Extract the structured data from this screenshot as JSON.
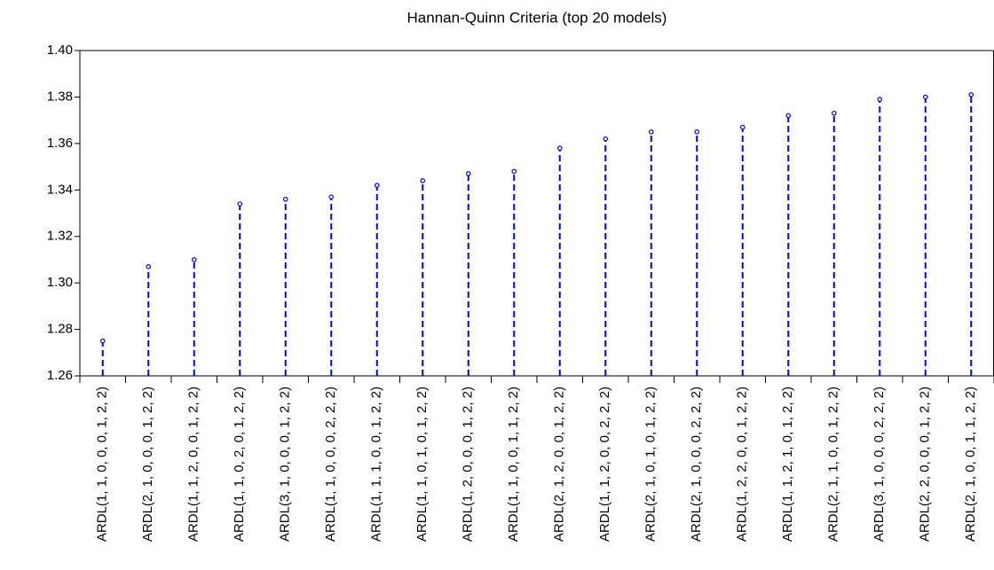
{
  "chart_data": {
    "type": "stem",
    "title": "Hannan-Quinn Criteria (top 20 models)",
    "categories": [
      "ARDL(1, 1, 0, 0, 0, 1, 2, 2)",
      "ARDL(2, 1, 0, 0, 0, 1, 2, 2)",
      "ARDL(1, 1, 2, 0, 0, 1, 2, 2)",
      "ARDL(1, 1, 0, 2, 0, 1, 2, 2)",
      "ARDL(3, 1, 0, 0, 0, 1, 2, 2)",
      "ARDL(1, 1, 0, 0, 0, 2, 2, 2)",
      "ARDL(1, 1, 1, 0, 0, 1, 2, 2)",
      "ARDL(1, 1, 0, 1, 0, 1, 2, 2)",
      "ARDL(1, 2, 0, 0, 0, 1, 2, 2)",
      "ARDL(1, 1, 0, 0, 1, 1, 2, 2)",
      "ARDL(2, 1, 2, 0, 0, 1, 2, 2)",
      "ARDL(1, 1, 2, 0, 0, 2, 2, 2)",
      "ARDL(2, 1, 0, 1, 0, 1, 2, 2)",
      "ARDL(2, 1, 0, 0, 0, 2, 2, 2)",
      "ARDL(1, 2, 2, 0, 0, 1, 2, 2)",
      "ARDL(1, 1, 2, 1, 0, 1, 2, 2)",
      "ARDL(2, 1, 1, 0, 0, 1, 2, 2)",
      "ARDL(3, 1, 0, 0, 0, 2, 2, 2)",
      "ARDL(2, 2, 0, 0, 0, 1, 2, 2)",
      "ARDL(2, 1, 0, 0, 1, 1, 2, 2)"
    ],
    "values": [
      1.275,
      1.307,
      1.31,
      1.334,
      1.336,
      1.337,
      1.342,
      1.344,
      1.347,
      1.348,
      1.358,
      1.362,
      1.365,
      1.365,
      1.367,
      1.372,
      1.373,
      1.379,
      1.38,
      1.381
    ],
    "color": "#0000ff",
    "ylim": [
      1.26,
      1.4
    ],
    "yticks": [
      1.26,
      1.28,
      {
        "value": 1.3,
        "label": "1.30"
      },
      1.32,
      1.34,
      1.36,
      1.38,
      {
        "value": 1.4,
        "label": "1.40"
      }
    ]
  }
}
